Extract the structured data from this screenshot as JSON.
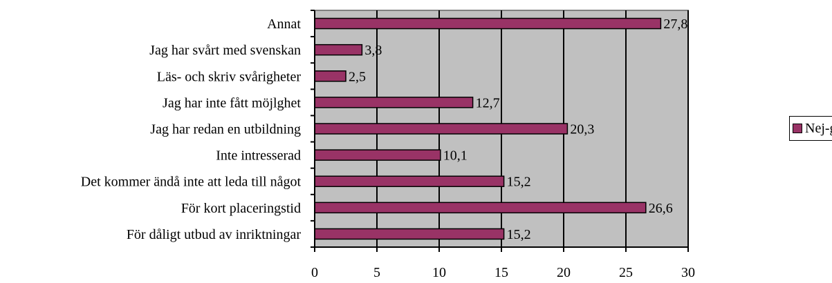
{
  "chart_data": {
    "type": "bar",
    "orientation": "horizontal",
    "categories": [
      "Annat",
      "Jag har svårt med svenskan",
      "Läs- och skriv svårigheter",
      "Jag har inte fått möjlghet",
      "Jag har redan en utbildning",
      "Inte intresserad",
      "Det kommer ändå inte att leda till något",
      "För kort placeringstid",
      "För dåligt utbud av inriktningar"
    ],
    "series": [
      {
        "name": "Nej-gruppen",
        "values": [
          27.8,
          3.8,
          2.5,
          12.7,
          20.3,
          10.1,
          15.2,
          26.6,
          15.2
        ],
        "labels": [
          "27,8",
          "3,8",
          "2,5",
          "12,7",
          "20,3",
          "10,1",
          "15,2",
          "26,6",
          "15,2"
        ],
        "color": "#993366"
      }
    ],
    "xlim": [
      0,
      30
    ],
    "xticks": [
      0,
      5,
      10,
      15,
      20,
      25,
      30
    ],
    "grid": true,
    "plot_background": "#c0c0c0",
    "legend_position": "right"
  }
}
